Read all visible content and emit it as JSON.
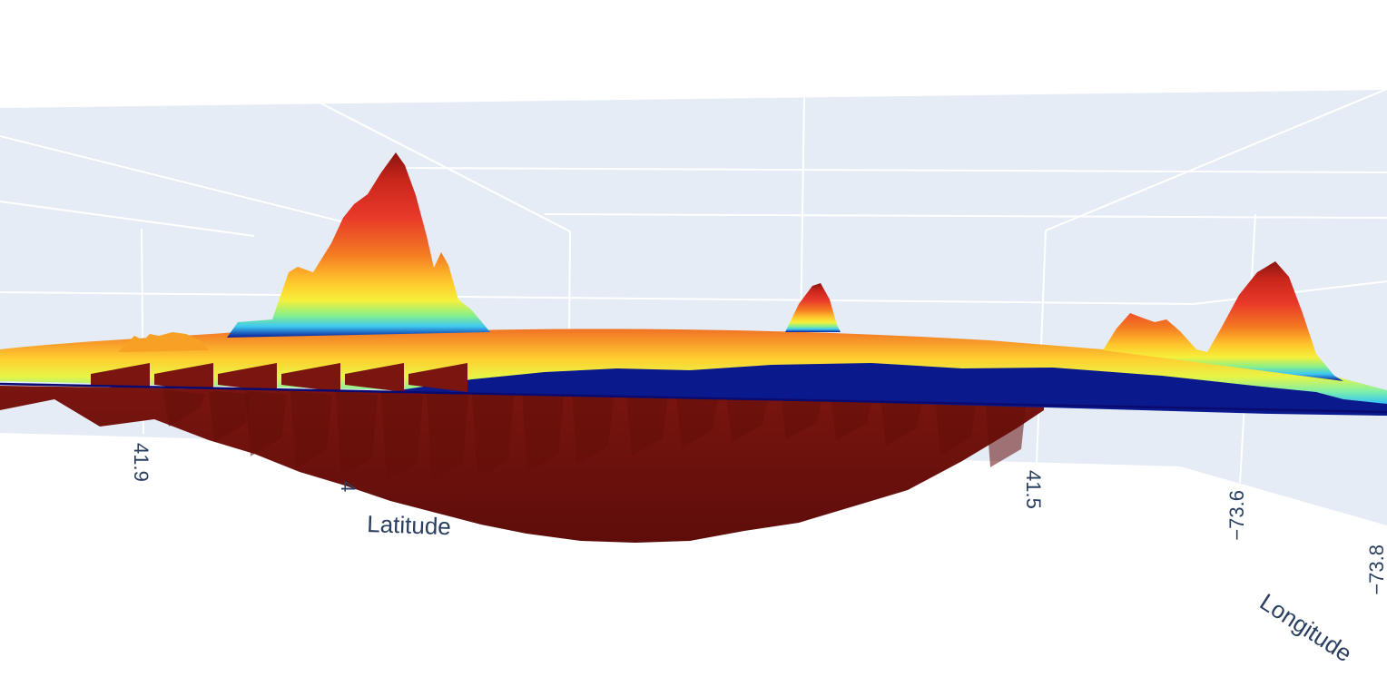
{
  "chart_data": {
    "type": "surface-3d",
    "colorscale": "jet",
    "colors": {
      "scene_bg": "#e5ecf6",
      "grid": "#ffffff",
      "text": "#2a3f5f",
      "low": "#00008f",
      "high": "#7f0000"
    },
    "axes": {
      "x": {
        "title": "Latitude",
        "tick_labels": [
          "41.9",
          "4",
          "41.5"
        ]
      },
      "y": {
        "title": "Longitude",
        "tick_labels": [
          "−73.6",
          "−73.8"
        ]
      }
    },
    "grid": true
  }
}
